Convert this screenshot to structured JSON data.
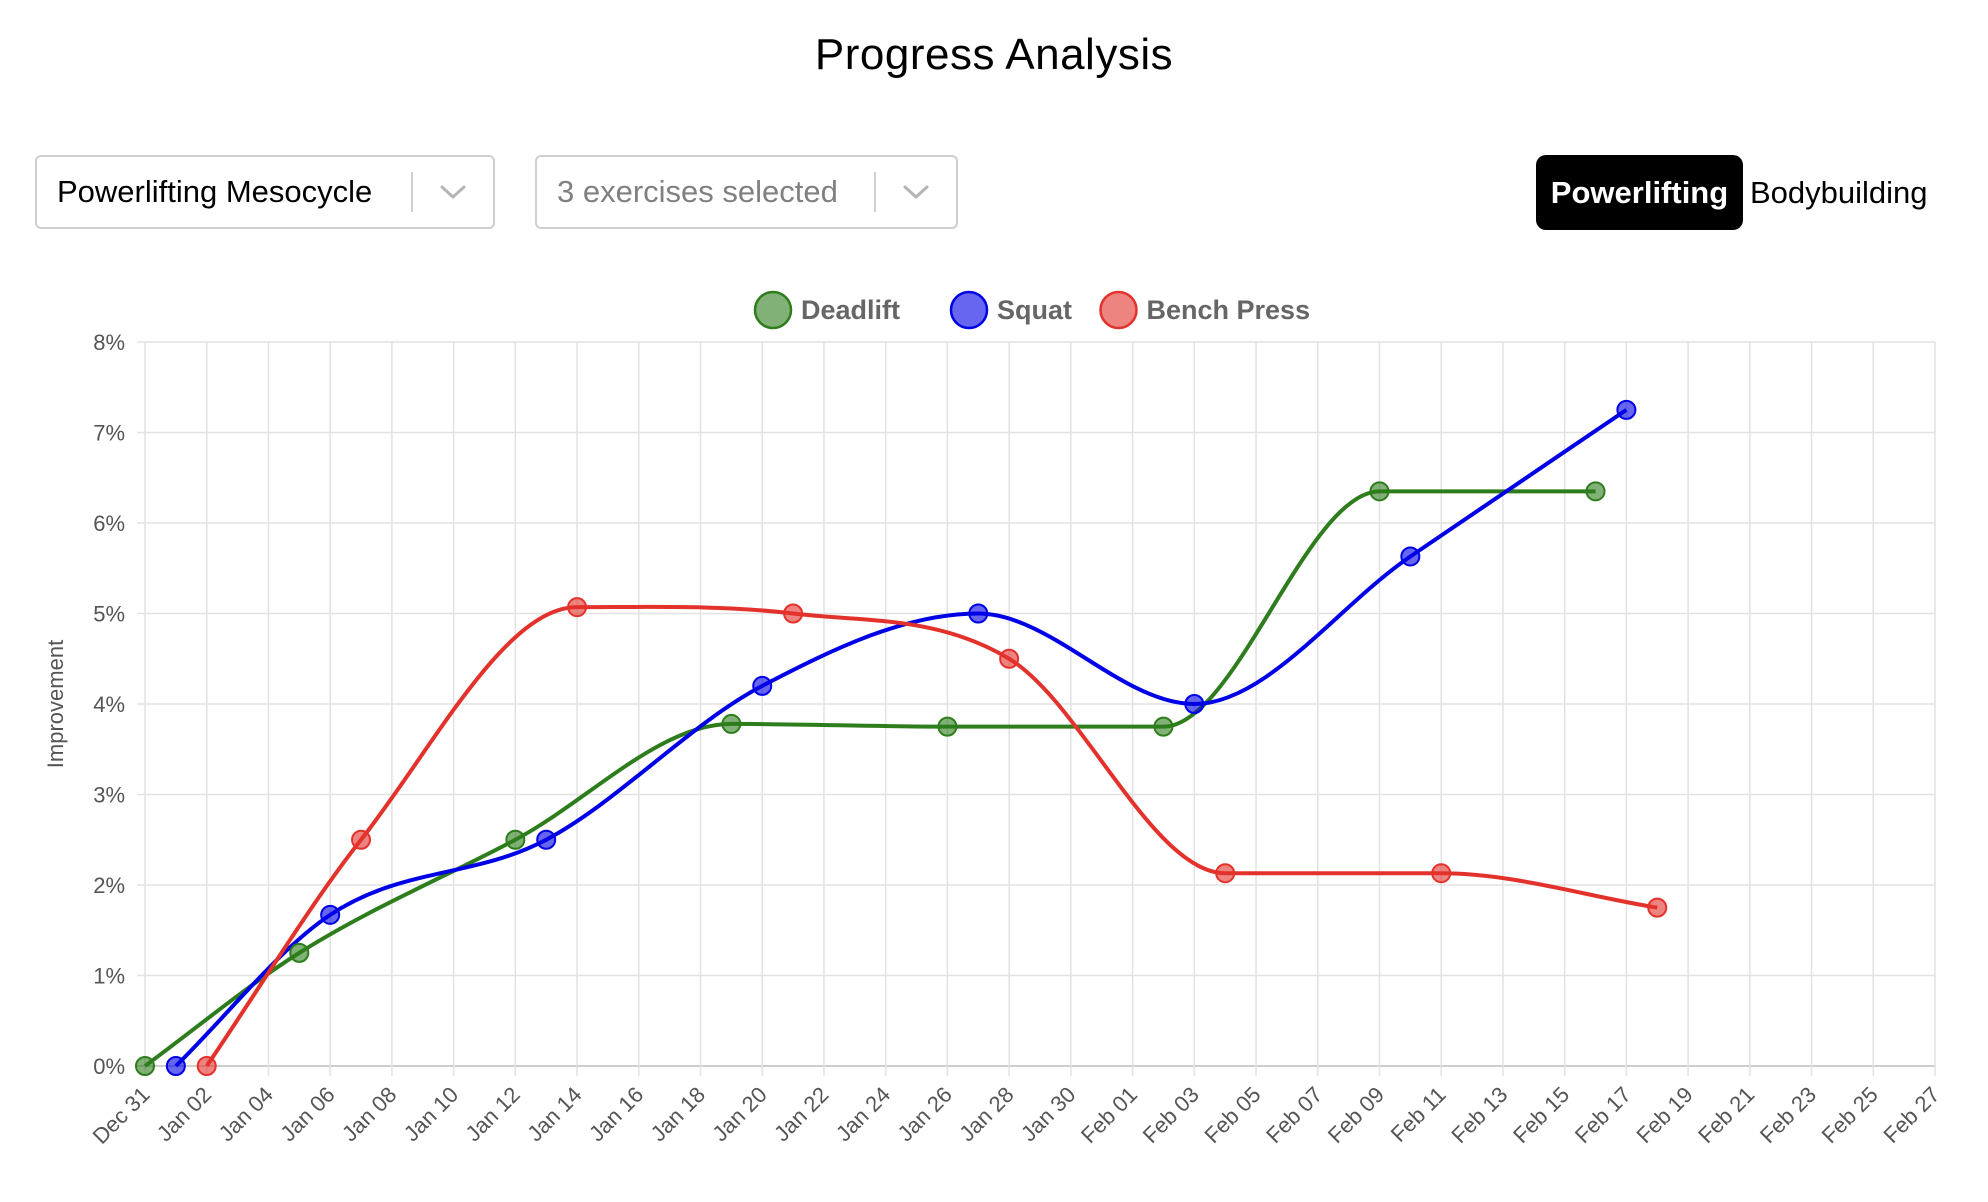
{
  "header": {
    "title": "Progress Analysis"
  },
  "controls": {
    "mesocycle_select": {
      "value": "Powerlifting Mesocycle"
    },
    "exercise_select": {
      "placeholder": "3 exercises selected"
    },
    "mode_toggle": {
      "active": "Powerlifting",
      "inactive": "Bodybuilding"
    }
  },
  "chart_data": {
    "type": "line",
    "title": "",
    "ylabel": "Improvement",
    "xlabel": "",
    "ylim": [
      0,
      8
    ],
    "y_ticks": [
      "0%",
      "1%",
      "2%",
      "3%",
      "4%",
      "5%",
      "6%",
      "7%",
      "8%"
    ],
    "x_ticks": [
      "Dec 31",
      "Jan 02",
      "Jan 04",
      "Jan 06",
      "Jan 08",
      "Jan 10",
      "Jan 12",
      "Jan 14",
      "Jan 16",
      "Jan 18",
      "Jan 20",
      "Jan 22",
      "Jan 24",
      "Jan 26",
      "Jan 28",
      "Jan 30",
      "Feb 01",
      "Feb 03",
      "Feb 05",
      "Feb 07",
      "Feb 09",
      "Feb 11",
      "Feb 13",
      "Feb 15",
      "Feb 17",
      "Feb 19",
      "Feb 21",
      "Feb 23",
      "Feb 25",
      "Feb 27"
    ],
    "grid": true,
    "legend_position": "top-center",
    "series": [
      {
        "name": "Deadlift",
        "color": "#2e7d1c",
        "points": [
          {
            "x": "Dec 31",
            "y": 0.0
          },
          {
            "x": "Jan 05",
            "y": 1.25
          },
          {
            "x": "Jan 12",
            "y": 2.5
          },
          {
            "x": "Jan 19",
            "y": 3.78
          },
          {
            "x": "Jan 26",
            "y": 3.75
          },
          {
            "x": "Feb 02",
            "y": 3.75
          },
          {
            "x": "Feb 09",
            "y": 6.35
          },
          {
            "x": "Feb 16",
            "y": 6.35
          }
        ]
      },
      {
        "name": "Squat",
        "color": "#0000e6",
        "points": [
          {
            "x": "Jan 01",
            "y": 0.0
          },
          {
            "x": "Jan 06",
            "y": 1.67
          },
          {
            "x": "Jan 13",
            "y": 2.5
          },
          {
            "x": "Jan 20",
            "y": 4.2
          },
          {
            "x": "Jan 27",
            "y": 5.0
          },
          {
            "x": "Feb 03",
            "y": 4.0
          },
          {
            "x": "Feb 10",
            "y": 5.63
          },
          {
            "x": "Feb 17",
            "y": 7.25
          }
        ]
      },
      {
        "name": "Bench Press",
        "color": "#e3322b",
        "points": [
          {
            "x": "Jan 02",
            "y": 0.0
          },
          {
            "x": "Jan 07",
            "y": 2.5
          },
          {
            "x": "Jan 14",
            "y": 5.07
          },
          {
            "x": "Jan 21",
            "y": 5.0
          },
          {
            "x": "Jan 28",
            "y": 4.5
          },
          {
            "x": "Feb 04",
            "y": 2.13
          },
          {
            "x": "Feb 11",
            "y": 2.13
          },
          {
            "x": "Feb 18",
            "y": 1.75
          }
        ]
      }
    ]
  }
}
